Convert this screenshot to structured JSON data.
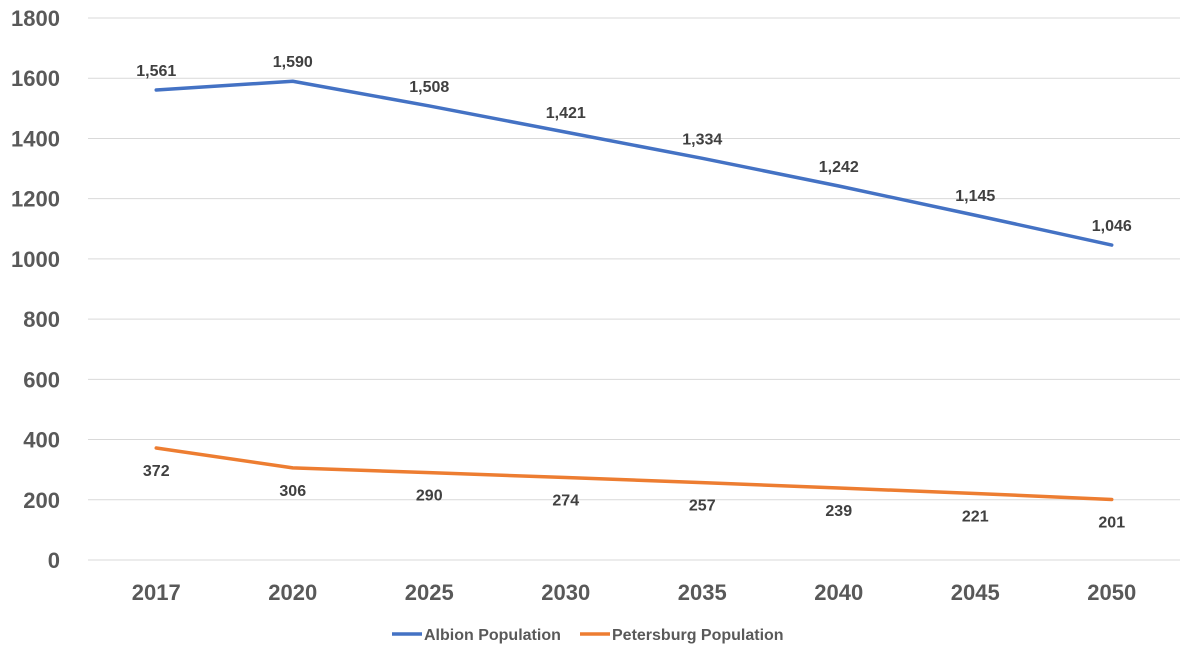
{
  "chart_data": {
    "type": "line",
    "categories": [
      "2017",
      "2020",
      "2025",
      "2030",
      "2035",
      "2040",
      "2045",
      "2050"
    ],
    "ylim": [
      0,
      1800
    ],
    "yticks": [
      0,
      200,
      400,
      600,
      800,
      1000,
      1200,
      1400,
      1600,
      1800
    ],
    "ytick_labels": [
      "0",
      "200",
      "400",
      "600",
      "800",
      "1000",
      "1200",
      "1400",
      "1600",
      "1800"
    ],
    "grid": true,
    "legend_position": "bottom",
    "series": [
      {
        "name": "Albion Population",
        "color": "#4472c4",
        "values": [
          1561,
          1590,
          1508,
          1421,
          1334,
          1242,
          1145,
          1046
        ],
        "labels": [
          "1,561",
          "1,590",
          "1,508",
          "1,421",
          "1,334",
          "1,242",
          "1,145",
          "1,046"
        ],
        "label_position": "above"
      },
      {
        "name": "Petersburg Population",
        "color": "#ed7d31",
        "values": [
          372,
          306,
          290,
          274,
          257,
          239,
          221,
          201
        ],
        "labels": [
          "372",
          "306",
          "290",
          "274",
          "257",
          "239",
          "221",
          "201"
        ],
        "label_position": "below"
      }
    ]
  }
}
